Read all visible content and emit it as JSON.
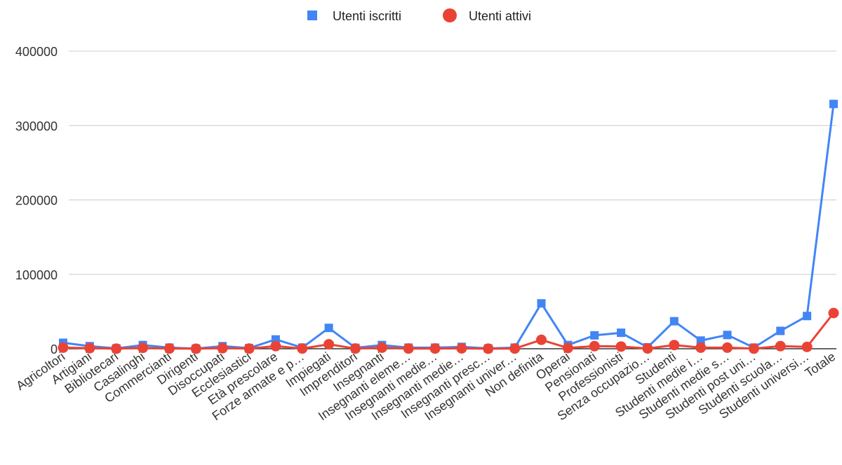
{
  "chart_data": {
    "type": "line",
    "title": "",
    "xlabel": "",
    "ylabel": "",
    "ylim": [
      0,
      400000
    ],
    "yticks": [
      "400000",
      "300000",
      "200000",
      "100000",
      "0"
    ],
    "grid": true,
    "legend_position": "top",
    "categories": [
      "Agricoltori",
      "Artigiani",
      "Bibliotecari",
      "Casalinghi",
      "Commercianti",
      "Dirigenti",
      "Disoccupati",
      "Ecclesiastici",
      "Età prescolare",
      "Forze armate e p…",
      "Impiegati",
      "Imprenditori",
      "Insegnanti",
      "Insegnanti eleme…",
      "Insegnanti medie…",
      "Insegnanti medie…",
      "Insegnanti presc…",
      "Insegnanti univer…",
      "Non definita",
      "Operai",
      "Pensionati",
      "Professionisti",
      "Senza occupazio…",
      "Studenti",
      "Studenti medie i…",
      "Studenti medie s…",
      "Studenti post uni…",
      "Studenti scuola…",
      "Studenti universi…",
      "Totale"
    ],
    "series": [
      {
        "name": "Utenti iscritti",
        "color": "#4285f4",
        "marker": "square",
        "values": [
          8000,
          3500,
          500,
          5000,
          1500,
          300,
          3500,
          800,
          12500,
          1500,
          28000,
          1200,
          5000,
          1500,
          1500,
          2500,
          500,
          1500,
          61000,
          5000,
          18000,
          21500,
          2000,
          37000,
          11000,
          18500,
          1500,
          24000,
          44000,
          329000
        ]
      },
      {
        "name": "Utenti attivi",
        "color": "#ea4335",
        "marker": "circle",
        "values": [
          1500,
          800,
          100,
          1200,
          300,
          50,
          800,
          200,
          3500,
          300,
          6000,
          300,
          1500,
          300,
          300,
          500,
          100,
          300,
          12000,
          1000,
          3500,
          3000,
          400,
          5000,
          1500,
          1500,
          200,
          3500,
          2500,
          48000
        ]
      }
    ]
  }
}
